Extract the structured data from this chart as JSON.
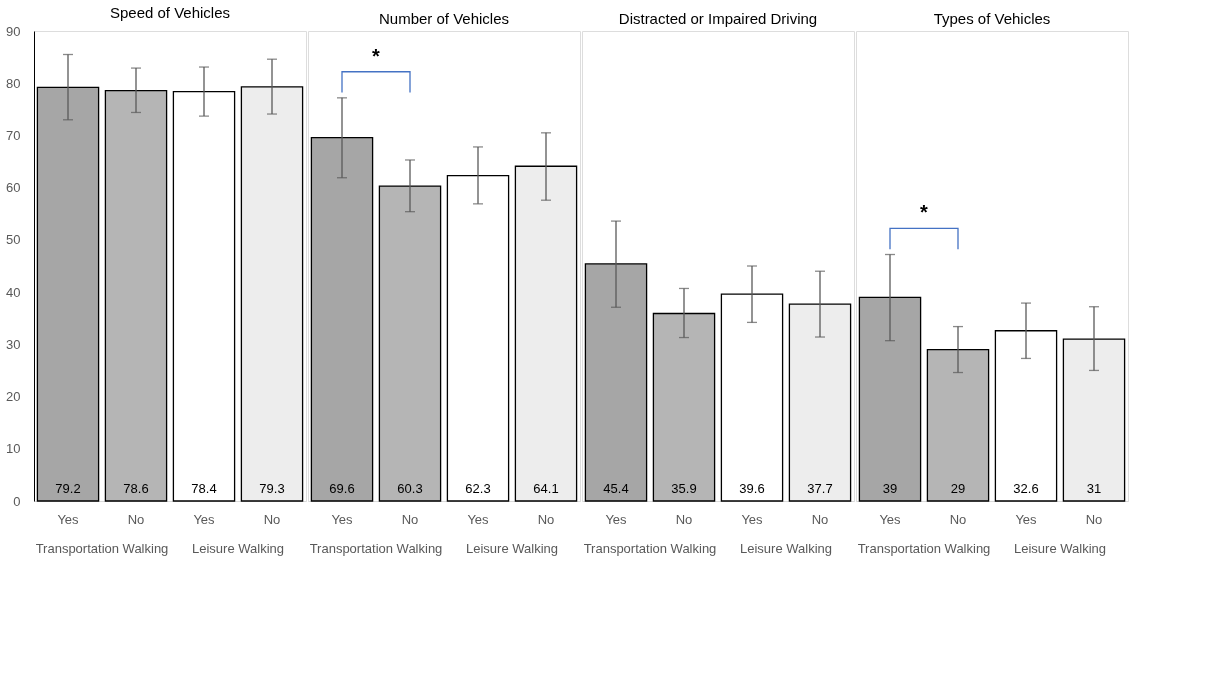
{
  "chart_data": [
    {
      "type": "bar",
      "title": "Speed of Vehicles",
      "categories": [
        "Yes",
        "No",
        "Yes",
        "No"
      ],
      "values": [
        79.2,
        78.6,
        78.4,
        79.3
      ],
      "colors": [
        "#a6a6a6",
        "#b5b5b5",
        "#ffffff",
        "#ededed"
      ],
      "errors": [
        [
          73.0,
          85.5
        ],
        [
          74.4,
          82.9
        ],
        [
          73.7,
          83.1
        ],
        [
          74.1,
          84.6
        ]
      ],
      "ylim": [
        0,
        90
      ],
      "yticks": [
        0,
        10,
        20,
        30,
        40,
        50,
        60,
        70,
        80,
        90
      ],
      "data_labels": true,
      "annotations": [
        "Transportation Walking",
        "Leisure Walking"
      ]
    },
    {
      "type": "bar",
      "title": "Number of Vehicles",
      "categories": [
        "Yes",
        "No",
        "Yes",
        "No"
      ],
      "values": [
        69.6,
        60.3,
        62.3,
        64.1
      ],
      "colors": [
        "#a6a6a6",
        "#b5b5b5",
        "#ffffff",
        "#ededed"
      ],
      "errors": [
        [
          61.9,
          77.2
        ],
        [
          55.4,
          65.3
        ],
        [
          56.9,
          67.8
        ],
        [
          57.6,
          70.5
        ]
      ],
      "ylim": [
        0,
        90
      ],
      "yticks": [
        0,
        10,
        20,
        30,
        40,
        50,
        60,
        70,
        80,
        90
      ],
      "tick_labels": "x",
      "data_labels": true,
      "annotations": [
        "Transportation Walking",
        "Leisure Walking",
        "*"
      ]
    },
    {
      "type": "bar",
      "title": "Distracted or Impaired Driving",
      "categories": [
        "Yes",
        "No",
        "Yes",
        "No"
      ],
      "values": [
        45.4,
        35.9,
        39.6,
        37.7
      ],
      "colors": [
        "#a6a6a6",
        "#b5b5b5",
        "#ffffff",
        "#ededed"
      ],
      "errors": [
        [
          37.1,
          53.6
        ],
        [
          31.3,
          40.7
        ],
        [
          34.2,
          45.0
        ],
        [
          31.4,
          44.0
        ]
      ],
      "ylim": [
        0,
        90
      ],
      "yticks": [
        0,
        10,
        20,
        30,
        40,
        50,
        60,
        70,
        80,
        90
      ],
      "tick_labels": "x",
      "data_labels": true,
      "annotations": [
        "Transportation Walking",
        "Leisure Walking"
      ]
    },
    {
      "type": "bar",
      "title": "Types of Vehicles",
      "categories": [
        "Yes",
        "No",
        "Yes",
        "No"
      ],
      "values": [
        39,
        29,
        32.6,
        31
      ],
      "colors": [
        "#a6a6a6",
        "#b5b5b5",
        "#ffffff",
        "#ededed"
      ],
      "errors": [
        [
          30.7,
          47.2
        ],
        [
          24.6,
          33.4
        ],
        [
          27.3,
          37.9
        ],
        [
          25.0,
          37.2
        ]
      ],
      "ylim": [
        0,
        90
      ],
      "yticks": [
        0,
        10,
        20,
        30,
        40,
        50,
        60,
        70,
        80,
        90
      ],
      "tick_labels": "x",
      "data_labels": true,
      "annotations": [
        "Transportation Walking",
        "Leisure Walking",
        "*"
      ]
    }
  ]
}
